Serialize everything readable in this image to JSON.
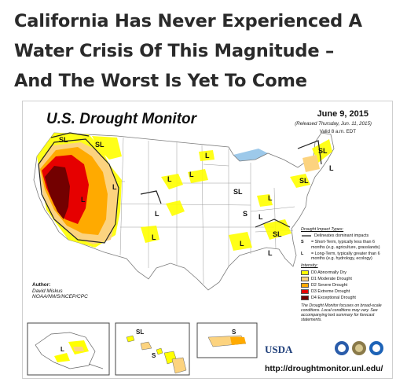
{
  "headline": {
    "line1": "California Has Never Experienced A",
    "line2": "Water Crisis Of This Magnitude –",
    "line3": "And The Worst Is Yet To Come"
  },
  "map": {
    "title": "U.S. Drought Monitor",
    "date": "June 9, 2015",
    "released": "(Released Thursday, Jun. 11, 2015)",
    "valid": "Valid 8 a.m. EDT",
    "author_label": "Author:",
    "author_name": "David Miskus",
    "author_org": "NOAA/NWS/NCEP/CPC",
    "url": "http://droughtmonitor.unl.edu/",
    "usda_logo": "USDA",
    "impact_labels": {
      "S": "S",
      "L": "L",
      "SL": "SL"
    }
  },
  "legend": {
    "impact_heading": "Drought Impact Types:",
    "delineates": "Delineates dominant impacts",
    "short_term": "= Short-Term, typically less than 6 months (e.g. agriculture, grasslands)",
    "long_term": "= Long-Term, typically greater than 6 months (e.g. hydrology, ecology)",
    "short_symbol": "S",
    "long_symbol": "L",
    "intensity_heading": "Intensity:",
    "levels": [
      {
        "label": "D0 Abnormally Dry",
        "color": "#ffff00"
      },
      {
        "label": "D1 Moderate Drought",
        "color": "#fcd37f"
      },
      {
        "label": "D2 Severe Drought",
        "color": "#ffaa00"
      },
      {
        "label": "D3 Extreme Drought",
        "color": "#e60000"
      },
      {
        "label": "D4 Exceptional Drought",
        "color": "#730000"
      }
    ],
    "note": "The Drought Monitor focuses on broad-scale conditions. Local conditions may vary. See accompanying text summary for forecast statements."
  },
  "colors": {
    "water": "#9dc9ea",
    "state_border": "#9a9a9a",
    "impact_line": "#222222"
  }
}
